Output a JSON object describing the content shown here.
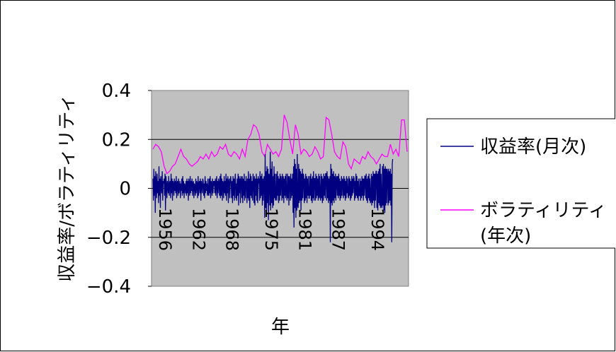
{
  "chart_data": {
    "type": "line",
    "xlabel": "年",
    "ylabel": "収益率/ボラティリティ",
    "ylim": [
      -0.4,
      0.4
    ],
    "yticks": [
      0.4,
      0.2,
      0,
      -0.2,
      -0.4
    ],
    "ytick_labels": [
      "0.4",
      "0.2",
      "0",
      "−0.2",
      "−0.4"
    ],
    "xlim": [
      1955.75,
      2001.75
    ],
    "xticks": [
      1956,
      1962,
      1968,
      1975,
      1981,
      1987,
      1994
    ],
    "xtick_labels": [
      "1956",
      "1962",
      "1968",
      "1975",
      "1981",
      "1987",
      "1994"
    ],
    "grid": "horizontal",
    "plot_background": "#c0c0c0",
    "legend_position": "right",
    "legend": [
      "収益率(月次)",
      "ボラティリティ\n(年次)"
    ],
    "series": [
      {
        "name": "収益率(月次)",
        "color": "#000080",
        "frequency": "monthly",
        "start": 1956,
        "values": [
          0.04,
          -0.05,
          0.08,
          -0.03,
          0.05,
          -0.1,
          0.07,
          0.02,
          -0.04,
          0.06,
          -0.02,
          0.03,
          -0.06,
          0.09,
          -0.03,
          0.04,
          -0.08,
          0.05,
          0.01,
          -0.02,
          0.07,
          -0.05,
          0.03,
          0.02,
          0.04,
          -0.03,
          0.06,
          -0.09,
          0.05,
          0.02,
          -0.04,
          0.03,
          0.01,
          -0.02,
          0.05,
          -0.03,
          0.02,
          0.03,
          -0.04,
          0.06,
          -0.02,
          0.04,
          -0.05,
          0.03,
          0.02,
          -0.03,
          0.04,
          -0.01,
          0.03,
          -0.02,
          0.05,
          -0.04,
          0.02,
          0.03,
          -0.03,
          0.04,
          -0.02,
          0.01,
          0.03,
          -0.04,
          0.02,
          -0.01,
          0.04,
          -0.03,
          0.05,
          -0.02,
          0.03,
          -0.04,
          0.02,
          0.01,
          -0.02,
          0.03,
          -0.03,
          0.04,
          -0.02,
          0.03,
          -0.05,
          0.04,
          0.02,
          -0.03,
          0.05,
          -0.02,
          0.03,
          -0.01,
          0.04,
          -0.03,
          0.02,
          0.03,
          -0.04,
          0.02,
          0.01,
          -0.03,
          0.04,
          -0.02,
          0.03,
          0.02,
          -0.04,
          0.05,
          -0.03,
          0.02,
          0.03,
          -0.02,
          0.04,
          -0.05,
          0.03,
          0.01,
          -0.02,
          0.04,
          0.03,
          -0.03,
          0.02,
          -0.04,
          0.05,
          -0.02,
          0.03,
          -0.01,
          0.02,
          -0.03,
          0.04,
          -0.02,
          -0.03,
          0.04,
          -0.02,
          0.05,
          -0.04,
          0.03,
          0.02,
          -0.03,
          0.04,
          -0.02,
          0.03,
          0.01,
          0.03,
          -0.02,
          0.04,
          -0.03,
          0.02,
          0.05,
          -0.04,
          0.03,
          -0.02,
          0.04,
          0.02,
          -0.03,
          0.05,
          -0.04,
          0.06,
          -0.03,
          0.04,
          -0.05,
          0.03,
          0.02,
          -0.04,
          0.05,
          -0.02,
          0.03,
          -0.03,
          0.06,
          -0.05,
          0.04,
          -0.02,
          0.05,
          -0.06,
          0.03,
          0.04,
          -0.04,
          0.02,
          0.05,
          0.02,
          -0.04,
          0.03,
          -0.06,
          0.05,
          -0.03,
          0.04,
          -0.05,
          0.03,
          0.06,
          -0.04,
          0.02,
          -0.05,
          0.04,
          -0.03,
          0.06,
          -0.07,
          0.05,
          -0.02,
          0.04,
          -0.06,
          0.05,
          0.03,
          -0.04,
          0.05,
          -0.06,
          0.04,
          -0.03,
          0.06,
          -0.05,
          0.03,
          -0.04,
          0.05,
          0.02,
          -0.06,
          0.04,
          -0.04,
          0.07,
          -0.05,
          0.04,
          -0.08,
          0.06,
          -0.03,
          0.05,
          -0.04,
          0.03,
          -0.05,
          0.06,
          0.03,
          -0.06,
          0.05,
          -0.07,
          0.04,
          -0.03,
          0.06,
          -0.05,
          0.04,
          -0.06,
          0.05,
          0.02,
          0.04,
          -0.05,
          0.07,
          -0.04,
          0.05,
          -0.03,
          0.06,
          -0.07,
          0.04,
          -0.05,
          0.03,
          0.05,
          -0.12,
          0.14,
          -0.08,
          0.07,
          -0.1,
          0.09,
          -0.06,
          0.08,
          -0.13,
          0.06,
          0.05,
          -0.07,
          0.15,
          -0.09,
          0.08,
          -0.06,
          0.11,
          -0.08,
          0.05,
          -0.07,
          0.09,
          -0.04,
          0.06,
          -0.05,
          -0.04,
          0.06,
          -0.05,
          0.07,
          -0.03,
          0.05,
          -0.06,
          0.04,
          -0.05,
          0.06,
          -0.03,
          0.05,
          0.03,
          -0.05,
          0.06,
          -0.04,
          0.05,
          -0.06,
          0.04,
          -0.03,
          0.05,
          -0.04,
          0.06,
          -0.02,
          -0.05,
          0.06,
          -0.04,
          0.05,
          -0.07,
          0.05,
          0.03,
          -0.05,
          0.06,
          -0.04,
          0.04,
          -0.03,
          0.06,
          -0.1,
          0.09,
          -0.16,
          0.12,
          -0.08,
          0.1,
          -0.12,
          0.08,
          -0.09,
          0.14,
          -0.07,
          -0.08,
          0.1,
          -0.06,
          0.08,
          -0.05,
          0.07,
          -0.09,
          0.06,
          -0.05,
          0.08,
          -0.04,
          0.06,
          0.05,
          -0.06,
          0.04,
          -0.05,
          0.06,
          -0.04,
          0.05,
          -0.06,
          0.04,
          -0.03,
          0.05,
          -0.04,
          -0.04,
          0.05,
          -0.03,
          0.06,
          -0.05,
          0.04,
          -0.06,
          0.05,
          -0.04,
          0.07,
          -0.05,
          0.04,
          0.04,
          -0.05,
          0.06,
          -0.04,
          0.05,
          -0.03,
          0.04,
          -0.05,
          0.06,
          -0.04,
          0.05,
          -0.03,
          -0.05,
          0.06,
          -0.04,
          0.05,
          -0.06,
          0.04,
          -0.05,
          0.06,
          -0.03,
          0.05,
          -0.04,
          0.06,
          0.06,
          -0.05,
          0.07,
          -0.04,
          0.05,
          -0.06,
          0.04,
          -0.05,
          0.05,
          -0.22,
          0.1,
          -0.06,
          0.08,
          -0.07,
          0.06,
          -0.05,
          0.07,
          -0.06,
          0.05,
          -0.04,
          0.06,
          -0.05,
          0.04,
          0.05,
          -0.03,
          0.05,
          -0.04,
          0.06,
          -0.03,
          0.04,
          -0.05,
          0.03,
          -0.04,
          0.05,
          -0.03,
          0.04,
          0.03,
          -0.04,
          0.05,
          -0.03,
          0.04,
          -0.05,
          0.03,
          -0.04,
          0.05,
          -0.02,
          0.04,
          -0.03,
          -0.04,
          0.05,
          -0.03,
          0.04,
          -0.05,
          0.03,
          -0.04,
          0.05,
          -0.03,
          0.04,
          -0.02,
          0.05,
          0.04,
          -0.05,
          0.03,
          -0.04,
          0.06,
          -0.03,
          0.05,
          -0.04,
          0.03,
          -0.05,
          0.04,
          -0.03,
          -0.03,
          0.04,
          -0.05,
          0.03,
          -0.04,
          0.05,
          -0.03,
          0.04,
          -0.05,
          0.04,
          -0.03,
          0.05,
          0.05,
          -0.04,
          0.06,
          -0.05,
          0.04,
          -0.06,
          0.05,
          -0.04,
          0.06,
          -0.05,
          0.04,
          -0.06,
          -0.05,
          0.06,
          -0.07,
          0.05,
          -0.06,
          0.07,
          -0.05,
          0.06,
          -0.08,
          0.06,
          -0.05,
          0.07,
          0.07,
          -0.08,
          0.06,
          -0.09,
          0.07,
          -0.06,
          0.08,
          -0.07,
          0.1,
          -0.08,
          0.06,
          -0.07,
          -0.08,
          0.09,
          -0.07,
          0.1,
          -0.09,
          0.08,
          -0.1,
          0.09,
          -0.07,
          0.08,
          -0.06,
          0.08,
          0.06,
          -0.07,
          0.08,
          -0.06,
          0.07,
          -0.05,
          0.08,
          -0.07,
          0.06,
          -0.22,
          0.1,
          0.12
        ]
      },
      {
        "name": "ボラティリティ\n(年次)",
        "color": "#ff00ff",
        "frequency": "annual",
        "x": [
          1956,
          1956.5,
          1957,
          1957.5,
          1958,
          1958.5,
          1959,
          1959.5,
          1960,
          1960.5,
          1961,
          1961.5,
          1962,
          1962.5,
          1963,
          1963.5,
          1964,
          1964.5,
          1965,
          1965.5,
          1966,
          1966.5,
          1967,
          1967.5,
          1968,
          1968.5,
          1969,
          1969.5,
          1970,
          1970.5,
          1971,
          1971.5,
          1972,
          1972.5,
          1973,
          1973.5,
          1974,
          1974.5,
          1975,
          1975.5,
          1976,
          1976.5,
          1977,
          1977.5,
          1978,
          1978.5,
          1979,
          1979.5,
          1980,
          1980.5,
          1981,
          1981.5,
          1982,
          1982.5,
          1983,
          1983.5,
          1984,
          1984.5,
          1985,
          1985.5,
          1986,
          1986.5,
          1987,
          1987.5,
          1988,
          1988.5,
          1989,
          1989.5,
          1990,
          1990.5,
          1991,
          1991.5,
          1992,
          1992.5,
          1993,
          1993.5,
          1994,
          1994.5,
          1995,
          1995.5,
          1996,
          1996.5,
          1997,
          1997.5,
          1998,
          1998.5,
          1999,
          1999.5,
          2000,
          2000.5,
          2001,
          2001.5
        ],
        "values": [
          0.16,
          0.18,
          0.17,
          0.15,
          0.09,
          0.06,
          0.07,
          0.09,
          0.1,
          0.13,
          0.16,
          0.13,
          0.12,
          0.1,
          0.09,
          0.1,
          0.11,
          0.13,
          0.12,
          0.14,
          0.12,
          0.15,
          0.13,
          0.14,
          0.17,
          0.16,
          0.18,
          0.14,
          0.13,
          0.15,
          0.14,
          0.12,
          0.16,
          0.13,
          0.2,
          0.22,
          0.26,
          0.25,
          0.22,
          0.15,
          0.13,
          0.18,
          0.16,
          0.14,
          0.15,
          0.13,
          0.16,
          0.3,
          0.27,
          0.2,
          0.14,
          0.26,
          0.22,
          0.14,
          0.16,
          0.15,
          0.13,
          0.14,
          0.17,
          0.15,
          0.12,
          0.13,
          0.29,
          0.28,
          0.22,
          0.15,
          0.13,
          0.12,
          0.19,
          0.17,
          0.1,
          0.08,
          0.12,
          0.11,
          0.1,
          0.13,
          0.12,
          0.15,
          0.13,
          0.12,
          0.1,
          0.12,
          0.14,
          0.13,
          0.13,
          0.18,
          0.14,
          0.16,
          0.13,
          0.28,
          0.28,
          0.15
        ]
      }
    ]
  }
}
